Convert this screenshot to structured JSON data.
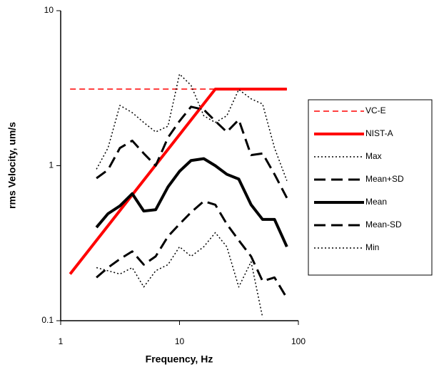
{
  "chart_data": {
    "type": "line",
    "x_label": "Frequency, Hz",
    "y_label": "rms Velocity, um/s",
    "x": [
      2,
      2.5,
      3.15,
      4,
      5,
      6.3,
      8,
      10,
      12.5,
      16,
      20,
      25,
      31.5,
      40,
      50,
      63,
      80
    ],
    "xlim": [
      1,
      100
    ],
    "ylim": [
      0.1,
      10
    ],
    "xticks": [
      1,
      10,
      100
    ],
    "yticks": [
      0.1,
      1,
      10
    ],
    "xscale": "log",
    "yscale": "log",
    "series": [
      {
        "name": "VC-E",
        "color": "#ff0000",
        "dash": "8,5",
        "width": 1.5,
        "x": [
          1.2,
          80
        ],
        "values": [
          3.12,
          3.12
        ]
      },
      {
        "name": "NIST-A",
        "color": "#ff0000",
        "dash": "none",
        "width": 4,
        "x": [
          1.2,
          20,
          80
        ],
        "values": [
          0.2,
          3.12,
          3.12
        ]
      },
      {
        "name": "Max",
        "color": "#000000",
        "dash": "2,3",
        "width": 1.5,
        "values": [
          0.95,
          1.3,
          2.45,
          2.2,
          1.9,
          1.65,
          1.8,
          3.9,
          3.3,
          2.1,
          1.9,
          2.1,
          3.1,
          2.7,
          2.5,
          1.3,
          0.8
        ]
      },
      {
        "name": "Mean+SD",
        "color": "#000000",
        "dash": "16,8",
        "width": 3,
        "values": [
          0.83,
          0.94,
          1.3,
          1.45,
          1.2,
          1.0,
          1.52,
          1.94,
          2.4,
          2.3,
          1.94,
          1.65,
          1.98,
          1.17,
          1.2,
          0.88,
          0.62
        ]
      },
      {
        "name": "Mean",
        "color": "#000000",
        "dash": "none",
        "width": 4,
        "values": [
          0.4,
          0.49,
          0.55,
          0.66,
          0.51,
          0.52,
          0.73,
          0.92,
          1.08,
          1.11,
          1.0,
          0.88,
          0.82,
          0.56,
          0.45,
          0.45,
          0.3
        ]
      },
      {
        "name": "Mean-SD",
        "color": "#000000",
        "dash": "16,8",
        "width": 3,
        "values": [
          0.19,
          0.22,
          0.25,
          0.28,
          0.23,
          0.26,
          0.35,
          0.42,
          0.5,
          0.59,
          0.56,
          0.42,
          0.33,
          0.26,
          0.18,
          0.19,
          0.14
        ]
      },
      {
        "name": "Min",
        "color": "#000000",
        "dash": "2,3",
        "width": 1.5,
        "values": [
          0.22,
          0.21,
          0.2,
          0.22,
          0.165,
          0.21,
          0.23,
          0.3,
          0.26,
          0.3,
          0.37,
          0.3,
          0.165,
          0.24,
          0.105,
          null,
          null
        ]
      }
    ]
  }
}
